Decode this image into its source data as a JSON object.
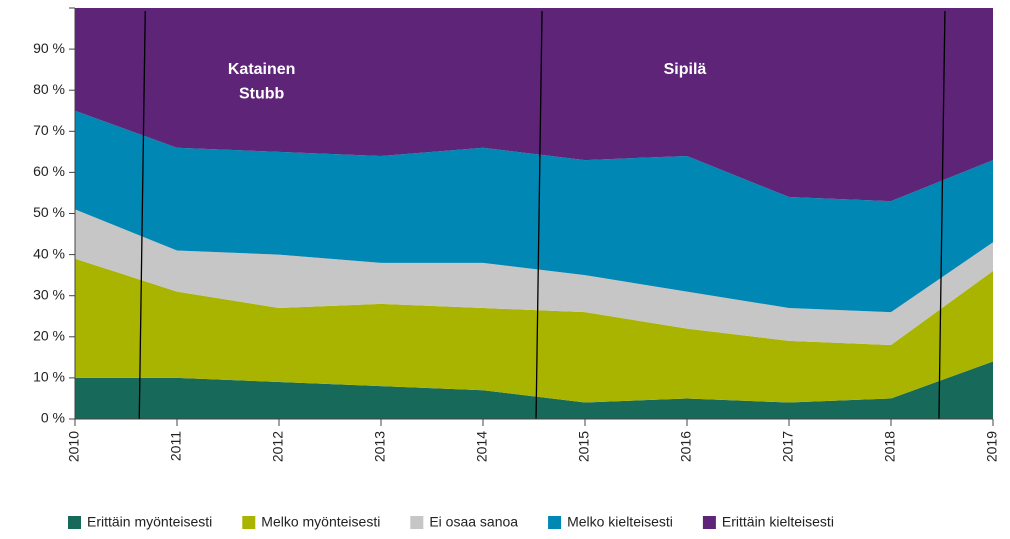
{
  "chart_data": {
    "type": "stacked_area",
    "x": [
      2010,
      2011,
      2012,
      2013,
      2014,
      2015,
      2016,
      2017,
      2018,
      2019
    ],
    "xlim": [
      2010,
      2019
    ],
    "xticks": [
      2010,
      2011,
      2012,
      2013,
      2014,
      2015,
      2016,
      2017,
      2018,
      2019
    ],
    "ylim": [
      0,
      100
    ],
    "yticks": [
      {
        "value": 0,
        "label": "0 %"
      },
      {
        "value": 10,
        "label": "10 %"
      },
      {
        "value": 20,
        "label": "20 %"
      },
      {
        "value": 30,
        "label": "30 %"
      },
      {
        "value": 40,
        "label": "40 %"
      },
      {
        "value": 50,
        "label": "50 %"
      },
      {
        "value": 60,
        "label": "60 %"
      },
      {
        "value": 70,
        "label": "70 %"
      },
      {
        "value": 80,
        "label": "80 %"
      },
      {
        "value": 90,
        "label": "90 %"
      }
    ],
    "series": [
      {
        "name": "Erittäin myönteisesti",
        "color": "#17695a",
        "values": [
          10,
          10,
          9,
          8,
          7,
          4,
          5,
          4,
          5,
          14
        ]
      },
      {
        "name": "Melko myönteisesti",
        "color": "#a9b400",
        "values": [
          29,
          21,
          18,
          20,
          20,
          22,
          17,
          15,
          13,
          22
        ]
      },
      {
        "name": "Ei osaa sanoa",
        "color": "#c6c6c6",
        "values": [
          12,
          10,
          13,
          10,
          11,
          9,
          9,
          8,
          8,
          7
        ]
      },
      {
        "name": "Melko kielteisesti",
        "color": "#0087b3",
        "values": [
          24,
          25,
          25,
          26,
          28,
          28,
          33,
          27,
          27,
          20
        ]
      },
      {
        "name": "Erittäin kielteisesti",
        "color": "#5d2477",
        "values": [
          25,
          34,
          35,
          36,
          34,
          37,
          36,
          46,
          47,
          37
        ]
      }
    ],
    "vertical_lines": [
      2010.63,
      2014.52,
      2018.47
    ],
    "annotations": [
      {
        "text": "Katainen",
        "x": 2011.83,
        "y": 85
      },
      {
        "text": "Stubb",
        "x": 2011.83,
        "y": 79
      },
      {
        "text": "Sipilä",
        "x": 2015.98,
        "y": 85
      }
    ],
    "legend": "bottom"
  }
}
